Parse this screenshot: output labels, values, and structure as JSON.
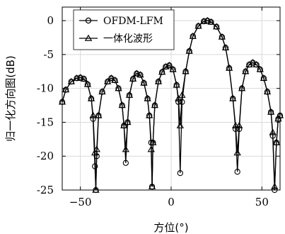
{
  "chart_data": {
    "type": "line",
    "title": "",
    "xlabel": "方位(°)",
    "ylabel": "归一化方向图(dB)",
    "xlim": [
      -60,
      60
    ],
    "ylim": [
      -25,
      2
    ],
    "xticks": [
      -50,
      0,
      50
    ],
    "xtick_labels": [
      "−50",
      "0",
      "50"
    ],
    "yticks": [
      0,
      -5,
      -10,
      -15,
      -20,
      -25
    ],
    "ytick_labels": [
      "0",
      "-5",
      "-10",
      "-15",
      "-20",
      "-25"
    ],
    "grid": true,
    "legend": {
      "placement": "top-left"
    },
    "mainlobe_center": 20,
    "series": [
      {
        "name": "OFDM-LFM",
        "marker": "circle",
        "color": "#000000",
        "points": [
          [
            -60,
            -12.0
          ],
          [
            -58,
            -10.2
          ],
          [
            -55,
            -9.0
          ],
          [
            -52,
            -8.5
          ],
          [
            -50,
            -8.4
          ],
          [
            -48,
            -8.6
          ],
          [
            -46,
            -9.4
          ],
          [
            -44,
            -11.5
          ],
          [
            -43,
            -14.5
          ],
          [
            -42,
            -21.5
          ],
          [
            -41.5,
            -25
          ],
          [
            -41,
            -20
          ],
          [
            -40,
            -14
          ],
          [
            -38,
            -10.5
          ],
          [
            -35,
            -9.0
          ],
          [
            -33,
            -8.5
          ],
          [
            -31,
            -8.8
          ],
          [
            -29,
            -10.0
          ],
          [
            -27,
            -12.5
          ],
          [
            -26,
            -15.5
          ],
          [
            -25,
            -21.0
          ],
          [
            -24,
            -15
          ],
          [
            -23,
            -11.0
          ],
          [
            -21,
            -8.6
          ],
          [
            -19,
            -7.8
          ],
          [
            -17,
            -8.0
          ],
          [
            -15,
            -9.2
          ],
          [
            -13,
            -11.5
          ],
          [
            -12,
            -14.0
          ],
          [
            -11,
            -18
          ],
          [
            -10.5,
            -24.5
          ],
          [
            -10,
            -18
          ],
          [
            -9,
            -12.5
          ],
          [
            -7,
            -9.0
          ],
          [
            -5,
            -7.6
          ],
          [
            -3,
            -6.8
          ],
          [
            -1,
            -6.6
          ],
          [
            1,
            -7.2
          ],
          [
            3,
            -9.5
          ],
          [
            4,
            -12.0
          ],
          [
            5,
            -22.5
          ],
          [
            6,
            -12
          ],
          [
            8,
            -7.5
          ],
          [
            10,
            -4.5
          ],
          [
            12,
            -2.3
          ],
          [
            15,
            -0.8
          ],
          [
            18,
            -0.1
          ],
          [
            20,
            0.0
          ],
          [
            22,
            -0.2
          ],
          [
            25,
            -0.9
          ],
          [
            28,
            -2.4
          ],
          [
            30,
            -4.0
          ],
          [
            32,
            -7.0
          ],
          [
            34,
            -11.5
          ],
          [
            35.5,
            -16
          ],
          [
            36.5,
            -22.3
          ],
          [
            37.5,
            -16
          ],
          [
            39,
            -10.0
          ],
          [
            41,
            -7.5
          ],
          [
            43,
            -6.5
          ],
          [
            45,
            -6.2
          ],
          [
            47,
            -6.5
          ],
          [
            49,
            -7.2
          ],
          [
            51,
            -8.5
          ],
          [
            53,
            -10.5
          ],
          [
            55,
            -13.5
          ],
          [
            56,
            -17
          ],
          [
            57,
            -25
          ],
          [
            58,
            -18
          ],
          [
            59,
            -14.5
          ],
          [
            60,
            -14.0
          ]
        ]
      },
      {
        "name": "一体化波形",
        "marker": "triangle",
        "color": "#000000",
        "points": [
          [
            -60,
            -12.0
          ],
          [
            -58,
            -10.2
          ],
          [
            -55,
            -9.0
          ],
          [
            -52,
            -8.5
          ],
          [
            -50,
            -8.4
          ],
          [
            -48,
            -8.6
          ],
          [
            -46,
            -9.4
          ],
          [
            -44,
            -11.5
          ],
          [
            -43,
            -14.0
          ],
          [
            -42,
            -19.5
          ],
          [
            -41.5,
            -25
          ],
          [
            -41,
            -19
          ],
          [
            -40,
            -14
          ],
          [
            -38,
            -10.5
          ],
          [
            -35,
            -9.0
          ],
          [
            -33,
            -8.5
          ],
          [
            -31,
            -8.8
          ],
          [
            -29,
            -10.0
          ],
          [
            -27,
            -12.5
          ],
          [
            -26,
            -15.5
          ],
          [
            -25,
            -19.0
          ],
          [
            -24,
            -15
          ],
          [
            -23,
            -11.0
          ],
          [
            -21,
            -8.6
          ],
          [
            -19,
            -7.8
          ],
          [
            -17,
            -8.0
          ],
          [
            -15,
            -9.2
          ],
          [
            -13,
            -11.5
          ],
          [
            -12,
            -14.0
          ],
          [
            -11,
            -19
          ],
          [
            -10.5,
            -24.5
          ],
          [
            -10,
            -18
          ],
          [
            -9,
            -12.5
          ],
          [
            -7,
            -9.0
          ],
          [
            -5,
            -7.6
          ],
          [
            -3,
            -6.8
          ],
          [
            -1,
            -6.6
          ],
          [
            1,
            -7.2
          ],
          [
            3,
            -9.5
          ],
          [
            4,
            -11.5
          ],
          [
            5,
            -15.5
          ],
          [
            6,
            -11
          ],
          [
            8,
            -7.5
          ],
          [
            10,
            -4.5
          ],
          [
            12,
            -2.3
          ],
          [
            15,
            -0.8
          ],
          [
            18,
            -0.1
          ],
          [
            20,
            0.0
          ],
          [
            22,
            -0.2
          ],
          [
            25,
            -0.9
          ],
          [
            28,
            -2.4
          ],
          [
            30,
            -4.0
          ],
          [
            32,
            -7.0
          ],
          [
            34,
            -11.5
          ],
          [
            35.5,
            -15.5
          ],
          [
            36.5,
            -19.5
          ],
          [
            37.5,
            -15.5
          ],
          [
            39,
            -10.0
          ],
          [
            41,
            -7.5
          ],
          [
            43,
            -6.5
          ],
          [
            45,
            -6.2
          ],
          [
            47,
            -6.5
          ],
          [
            49,
            -7.2
          ],
          [
            51,
            -8.5
          ],
          [
            53,
            -10.5
          ],
          [
            55,
            -13.5
          ],
          [
            56,
            -16.5
          ],
          [
            57,
            -24.5
          ],
          [
            58,
            -18
          ],
          [
            59,
            -14.5
          ],
          [
            60,
            -14.0
          ]
        ]
      }
    ]
  }
}
